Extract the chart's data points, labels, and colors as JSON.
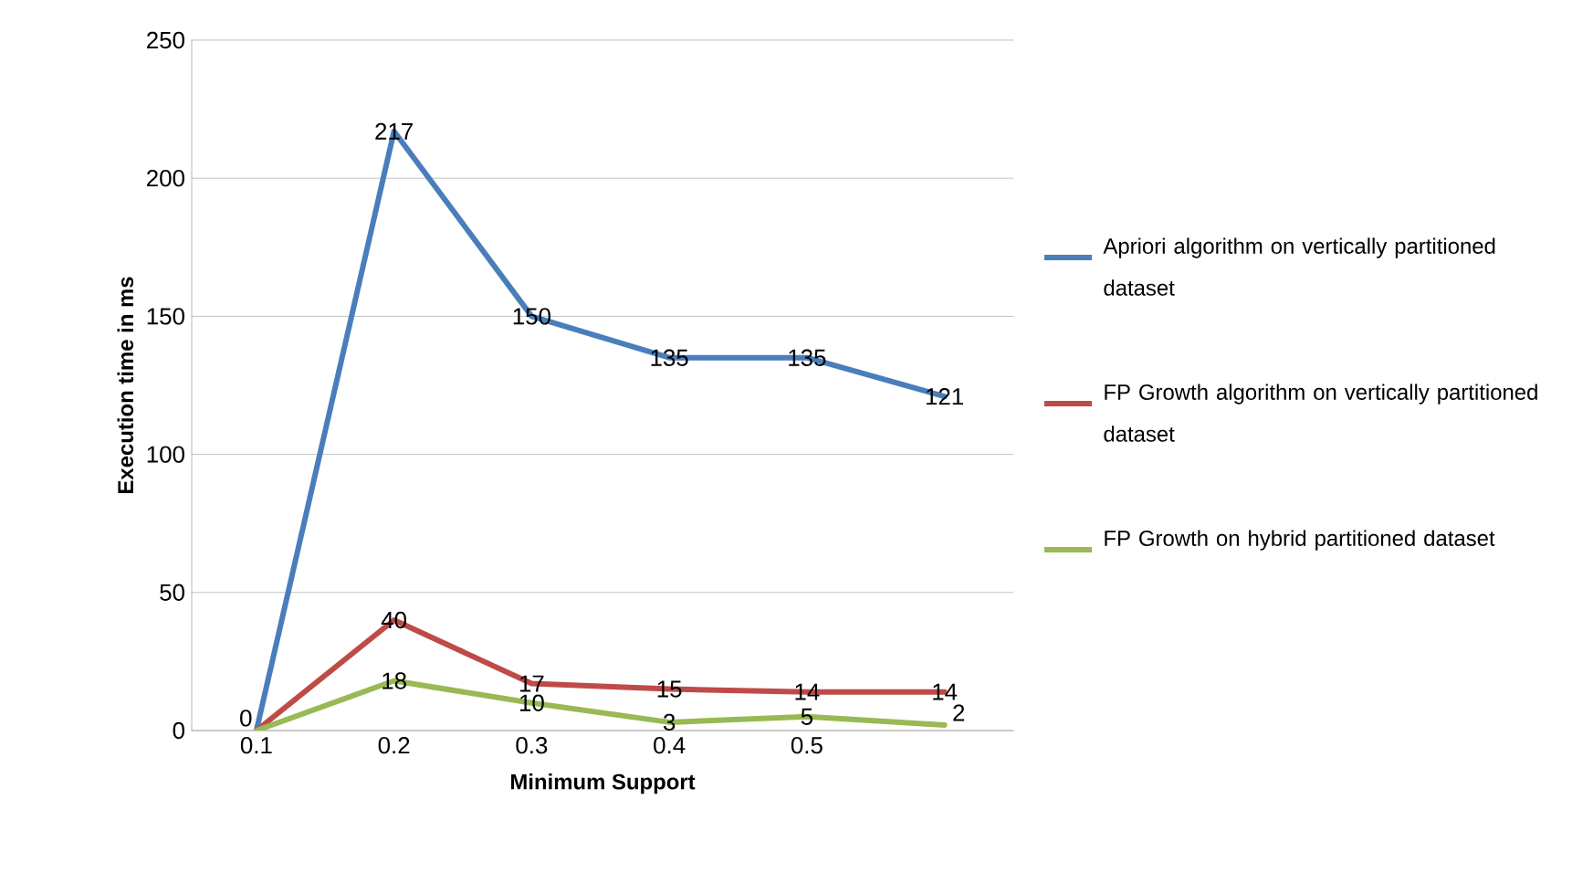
{
  "chart_data": {
    "type": "line",
    "xlabel": "Minimum Support",
    "ylabel": "Execution time in ms",
    "categories": [
      "0.1",
      "0.2",
      "0.3",
      "0.4",
      "0.5",
      null
    ],
    "series": [
      {
        "name": "Apriori algorithm on vertically partitioned dataset",
        "color": "#4a7ebb",
        "values": [
          0,
          217,
          150,
          135,
          135,
          121
        ],
        "value_labels": [
          "0",
          "217",
          "150",
          "135",
          "135",
          "121"
        ]
      },
      {
        "name": "FP Growth algorithm on vertically partitioned dataset",
        "color": "#be4b48",
        "values": [
          0,
          40,
          17,
          15,
          14,
          14
        ],
        "value_labels": [
          null,
          "40",
          "17",
          "15",
          "14",
          "14"
        ]
      },
      {
        "name": "FP Growth on hybrid partitioned dataset",
        "color": "#98b954",
        "values": [
          0,
          18,
          10,
          3,
          5,
          2
        ],
        "value_labels": [
          null,
          "18",
          "10",
          "3",
          "5",
          "2"
        ]
      }
    ],
    "ylim": [
      0,
      250
    ],
    "yticks": [
      0,
      50,
      100,
      150,
      200,
      250
    ],
    "grid": "y",
    "legend": "right",
    "marker": "none",
    "line_style": "solid"
  }
}
